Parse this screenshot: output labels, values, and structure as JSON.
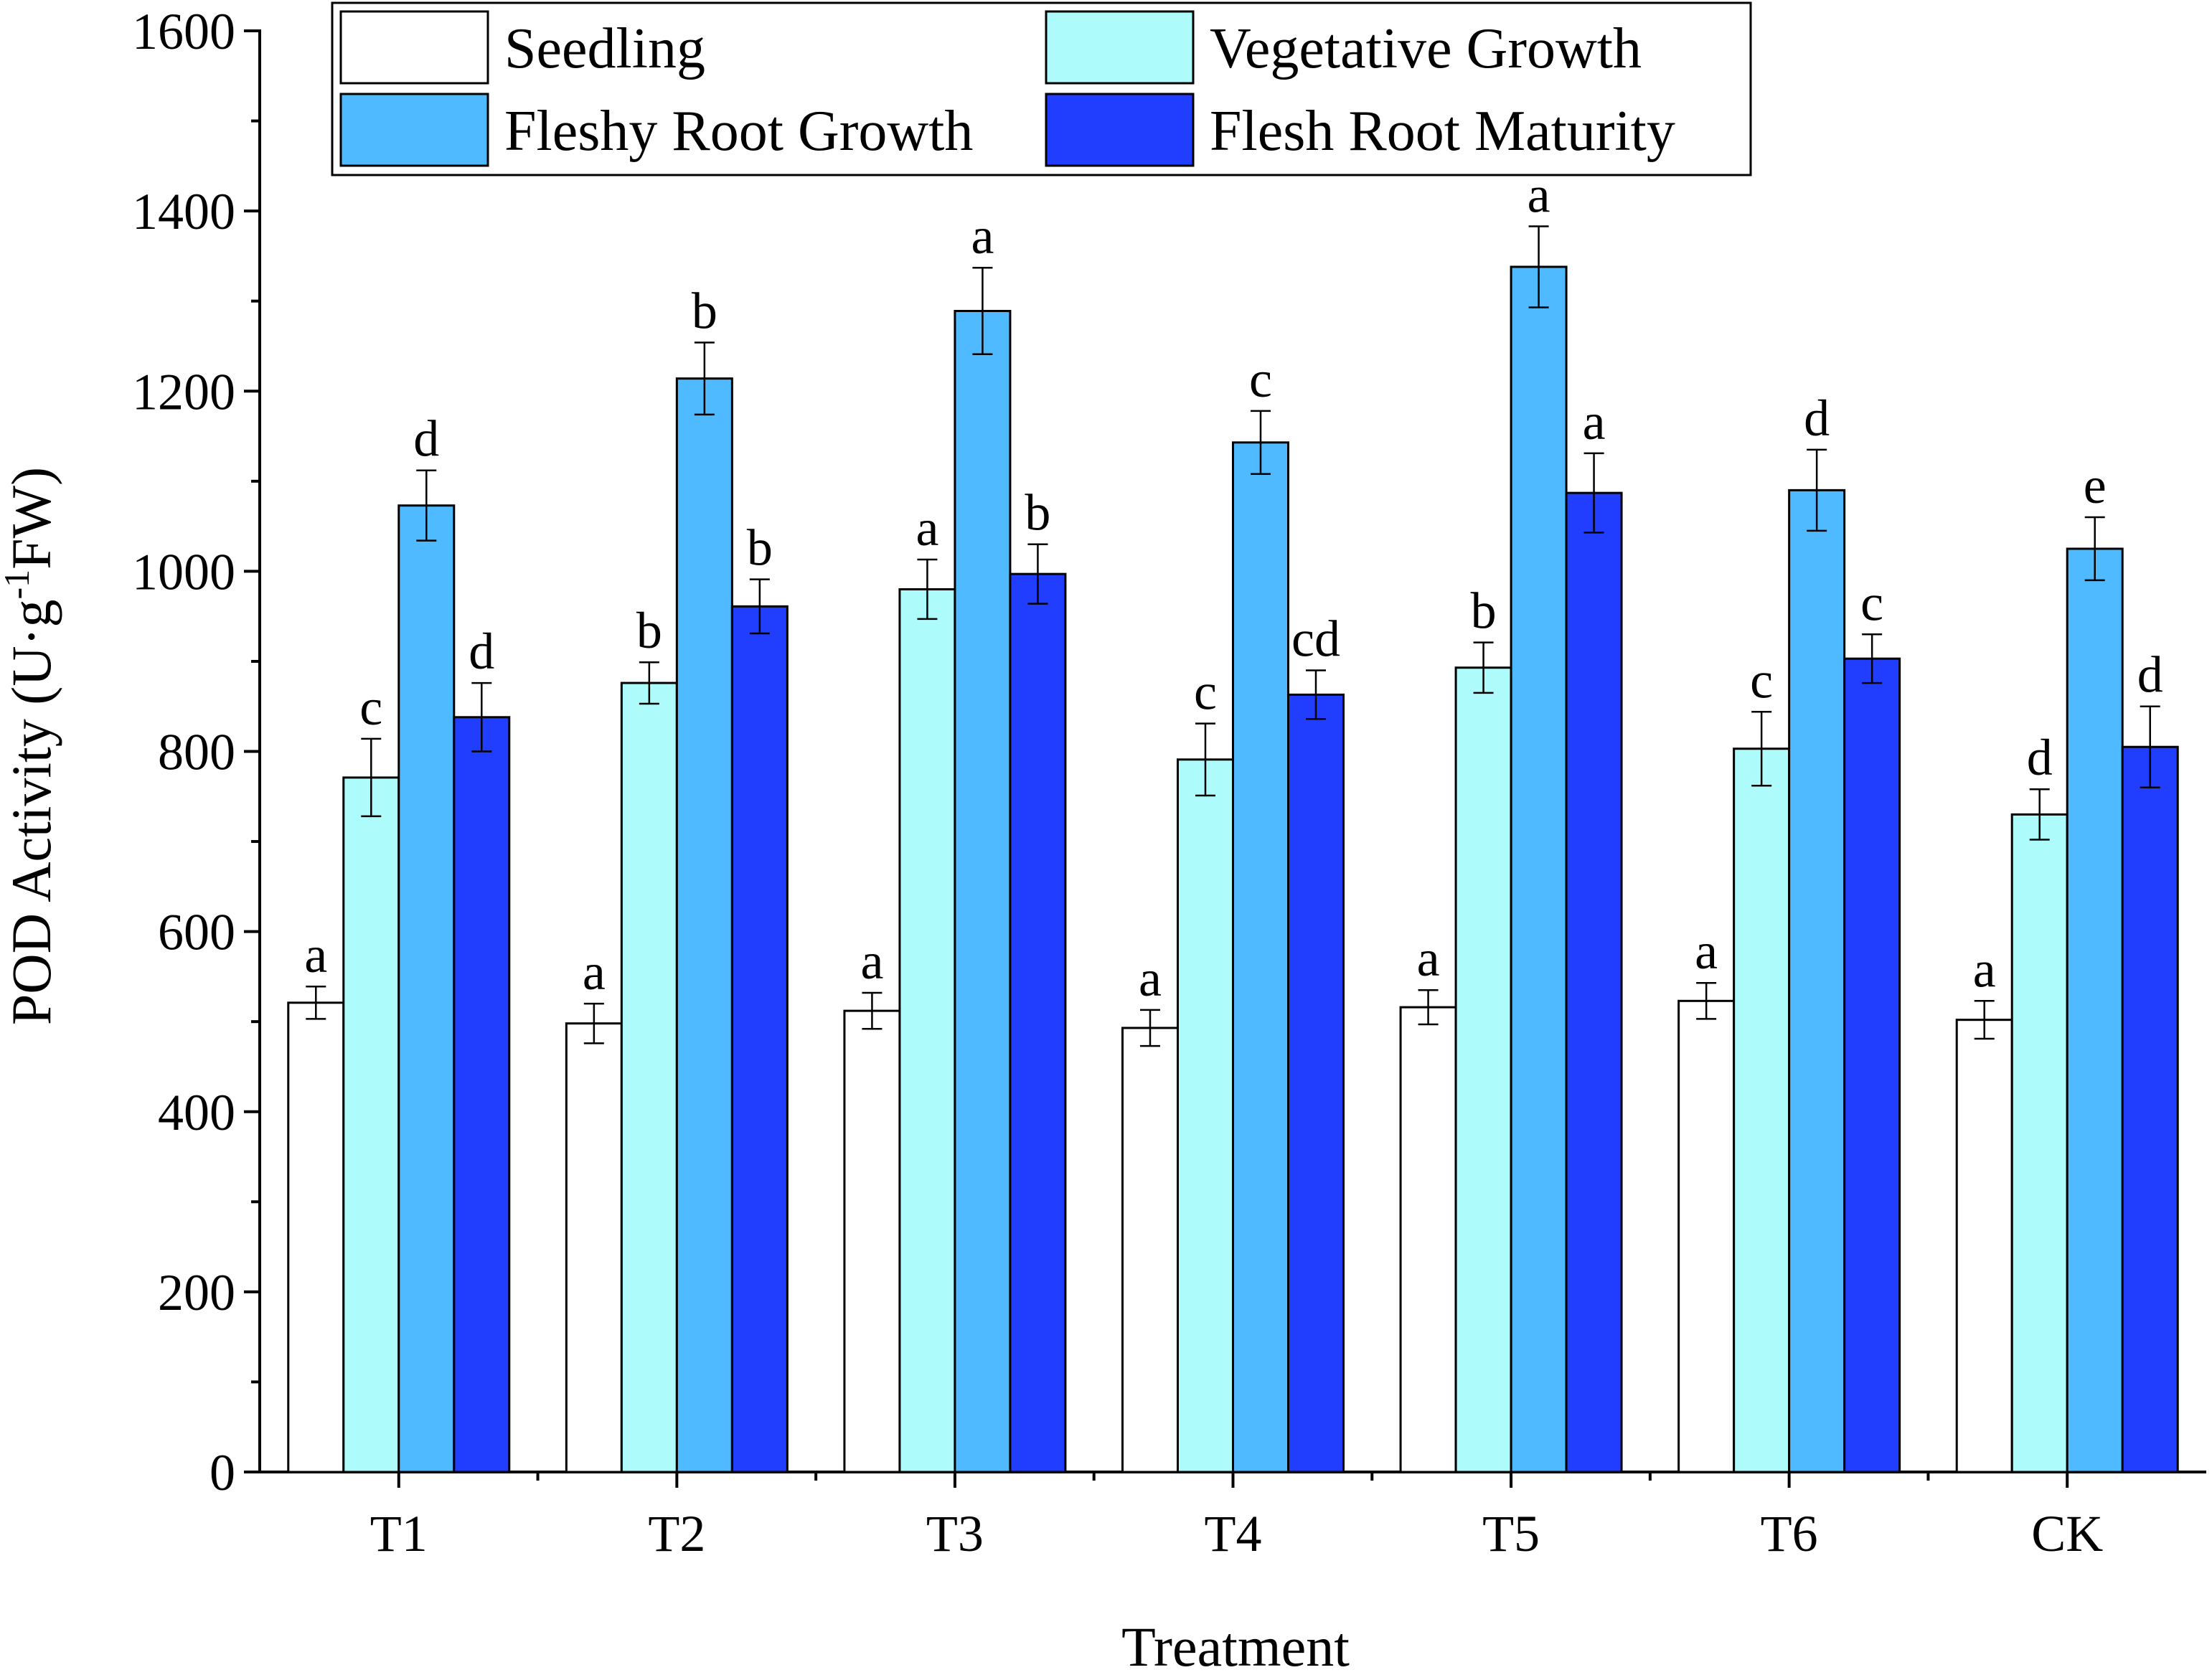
{
  "chart_data": {
    "type": "bar",
    "title": "",
    "xlabel": "Treatment",
    "ylabel": "POD Activity (U·g",
    "ylabel_superscript": "-1",
    "ylabel_tail": "FW)",
    "ylim": [
      0,
      1600
    ],
    "yticks": [
      0,
      200,
      400,
      600,
      800,
      1000,
      1200,
      1400,
      1600
    ],
    "categories": [
      "T1",
      "T2",
      "T3",
      "T4",
      "T5",
      "T6",
      "CK"
    ],
    "legend_position": "top",
    "series": [
      {
        "name": "Seedling",
        "color": "#ffffff",
        "values": [
          521,
          498,
          512,
          493,
          516,
          523,
          502
        ],
        "errors": [
          18,
          22,
          20,
          20,
          19,
          20,
          21
        ],
        "letters": [
          "a",
          "a",
          "a",
          "a",
          "a",
          "a",
          "a"
        ]
      },
      {
        "name": "Vegetative Growth",
        "color": "#aefbfb",
        "values": [
          771,
          876,
          980,
          791,
          893,
          803,
          730
        ],
        "errors": [
          43,
          23,
          33,
          40,
          28,
          41,
          28
        ],
        "letters": [
          "c",
          "b",
          "a",
          "c",
          "b",
          "c",
          "d"
        ]
      },
      {
        "name": "Fleshy Root Growth",
        "color": "#4fbaff",
        "values": [
          1073,
          1214,
          1289,
          1143,
          1338,
          1090,
          1025
        ],
        "errors": [
          39,
          40,
          48,
          35,
          45,
          45,
          35
        ],
        "letters": [
          "d",
          "b",
          "a",
          "c",
          "a",
          "d",
          "e"
        ]
      },
      {
        "name": "Flesh Root Maturity",
        "color": "#213eff",
        "values": [
          838,
          961,
          997,
          863,
          1087,
          903,
          805
        ],
        "errors": [
          38,
          30,
          33,
          27,
          44,
          27,
          45
        ],
        "letters": [
          "d",
          "b",
          "b",
          "cd",
          "a",
          "c",
          "d"
        ]
      }
    ]
  }
}
